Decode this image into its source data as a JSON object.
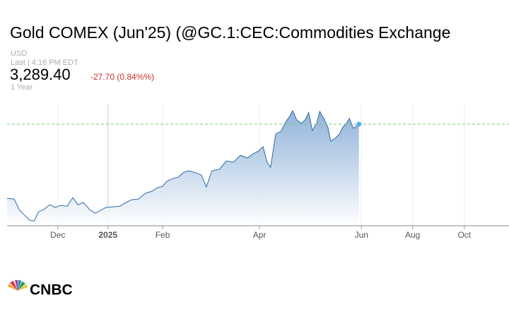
{
  "header": {
    "title": "Gold COMEX (Jun'25) (@GC.1:CEC:Commodities Exchange",
    "currency": "USD",
    "last_time": "Last | 4:16 PM EDT",
    "price": "3,289.40",
    "change": "-27.70 (0.84%%)",
    "range": "1 Year"
  },
  "brand": "CNBC",
  "chart_data": {
    "type": "area",
    "color": "#2f6aa8",
    "end_marker_color": "#4fb3f0",
    "grid": true,
    "reference_line": 3289.4,
    "xlim": [
      0,
      100
    ],
    "ylim": [
      2560,
      3431
    ],
    "xticks": [
      {
        "value": 10.1,
        "label": "Dec"
      },
      {
        "value": 20.1,
        "label": "2025"
      },
      {
        "value": 31,
        "label": "Feb"
      },
      {
        "value": 50.3,
        "label": "Apr"
      },
      {
        "value": 70.6,
        "label": "Jun"
      },
      {
        "value": 80.8,
        "label": "Aug"
      },
      {
        "value": 91.1,
        "label": "Oct"
      }
    ],
    "x": [
      0,
      1.4,
      2.5,
      3.5,
      4.5,
      5.4,
      6.3,
      7.3,
      8.5,
      9.6,
      10.6,
      12,
      13.1,
      14.1,
      15.2,
      16.6,
      17.6,
      18.6,
      19.7,
      21.1,
      22.5,
      23.7,
      24.8,
      26.2,
      27.5,
      28.9,
      29.9,
      31,
      31.8,
      33,
      34.1,
      35.2,
      36.3,
      37.7,
      38.7,
      39.7,
      40.8,
      42.3,
      43.7,
      45.1,
      46.5,
      47.9,
      49,
      50.1,
      51,
      51.8,
      52.5,
      53.5,
      54.6,
      55.5,
      56.3,
      56.9,
      57.7,
      58.6,
      59.4,
      60.1,
      60.8,
      61.7,
      62.3,
      63.1,
      63.9,
      64.5,
      65.4,
      66.2,
      66.9,
      67.6,
      68.2,
      69,
      70.1
    ],
    "values": [
      2757,
      2752,
      2671,
      2635,
      2600,
      2595,
      2661,
      2676,
      2711,
      2691,
      2706,
      2701,
      2762,
      2711,
      2727,
      2671,
      2650,
      2671,
      2691,
      2696,
      2701,
      2727,
      2747,
      2752,
      2792,
      2808,
      2833,
      2843,
      2879,
      2899,
      2909,
      2944,
      2955,
      2939,
      2924,
      2838,
      2955,
      2965,
      3026,
      3016,
      3066,
      3046,
      3076,
      3097,
      3127,
      3016,
      2980,
      3218,
      3239,
      3305,
      3345,
      3386,
      3320,
      3295,
      3320,
      3371,
      3244,
      3295,
      3381,
      3330,
      3269,
      3168,
      3188,
      3218,
      3269,
      3295,
      3330,
      3259,
      3289.4
    ]
  }
}
